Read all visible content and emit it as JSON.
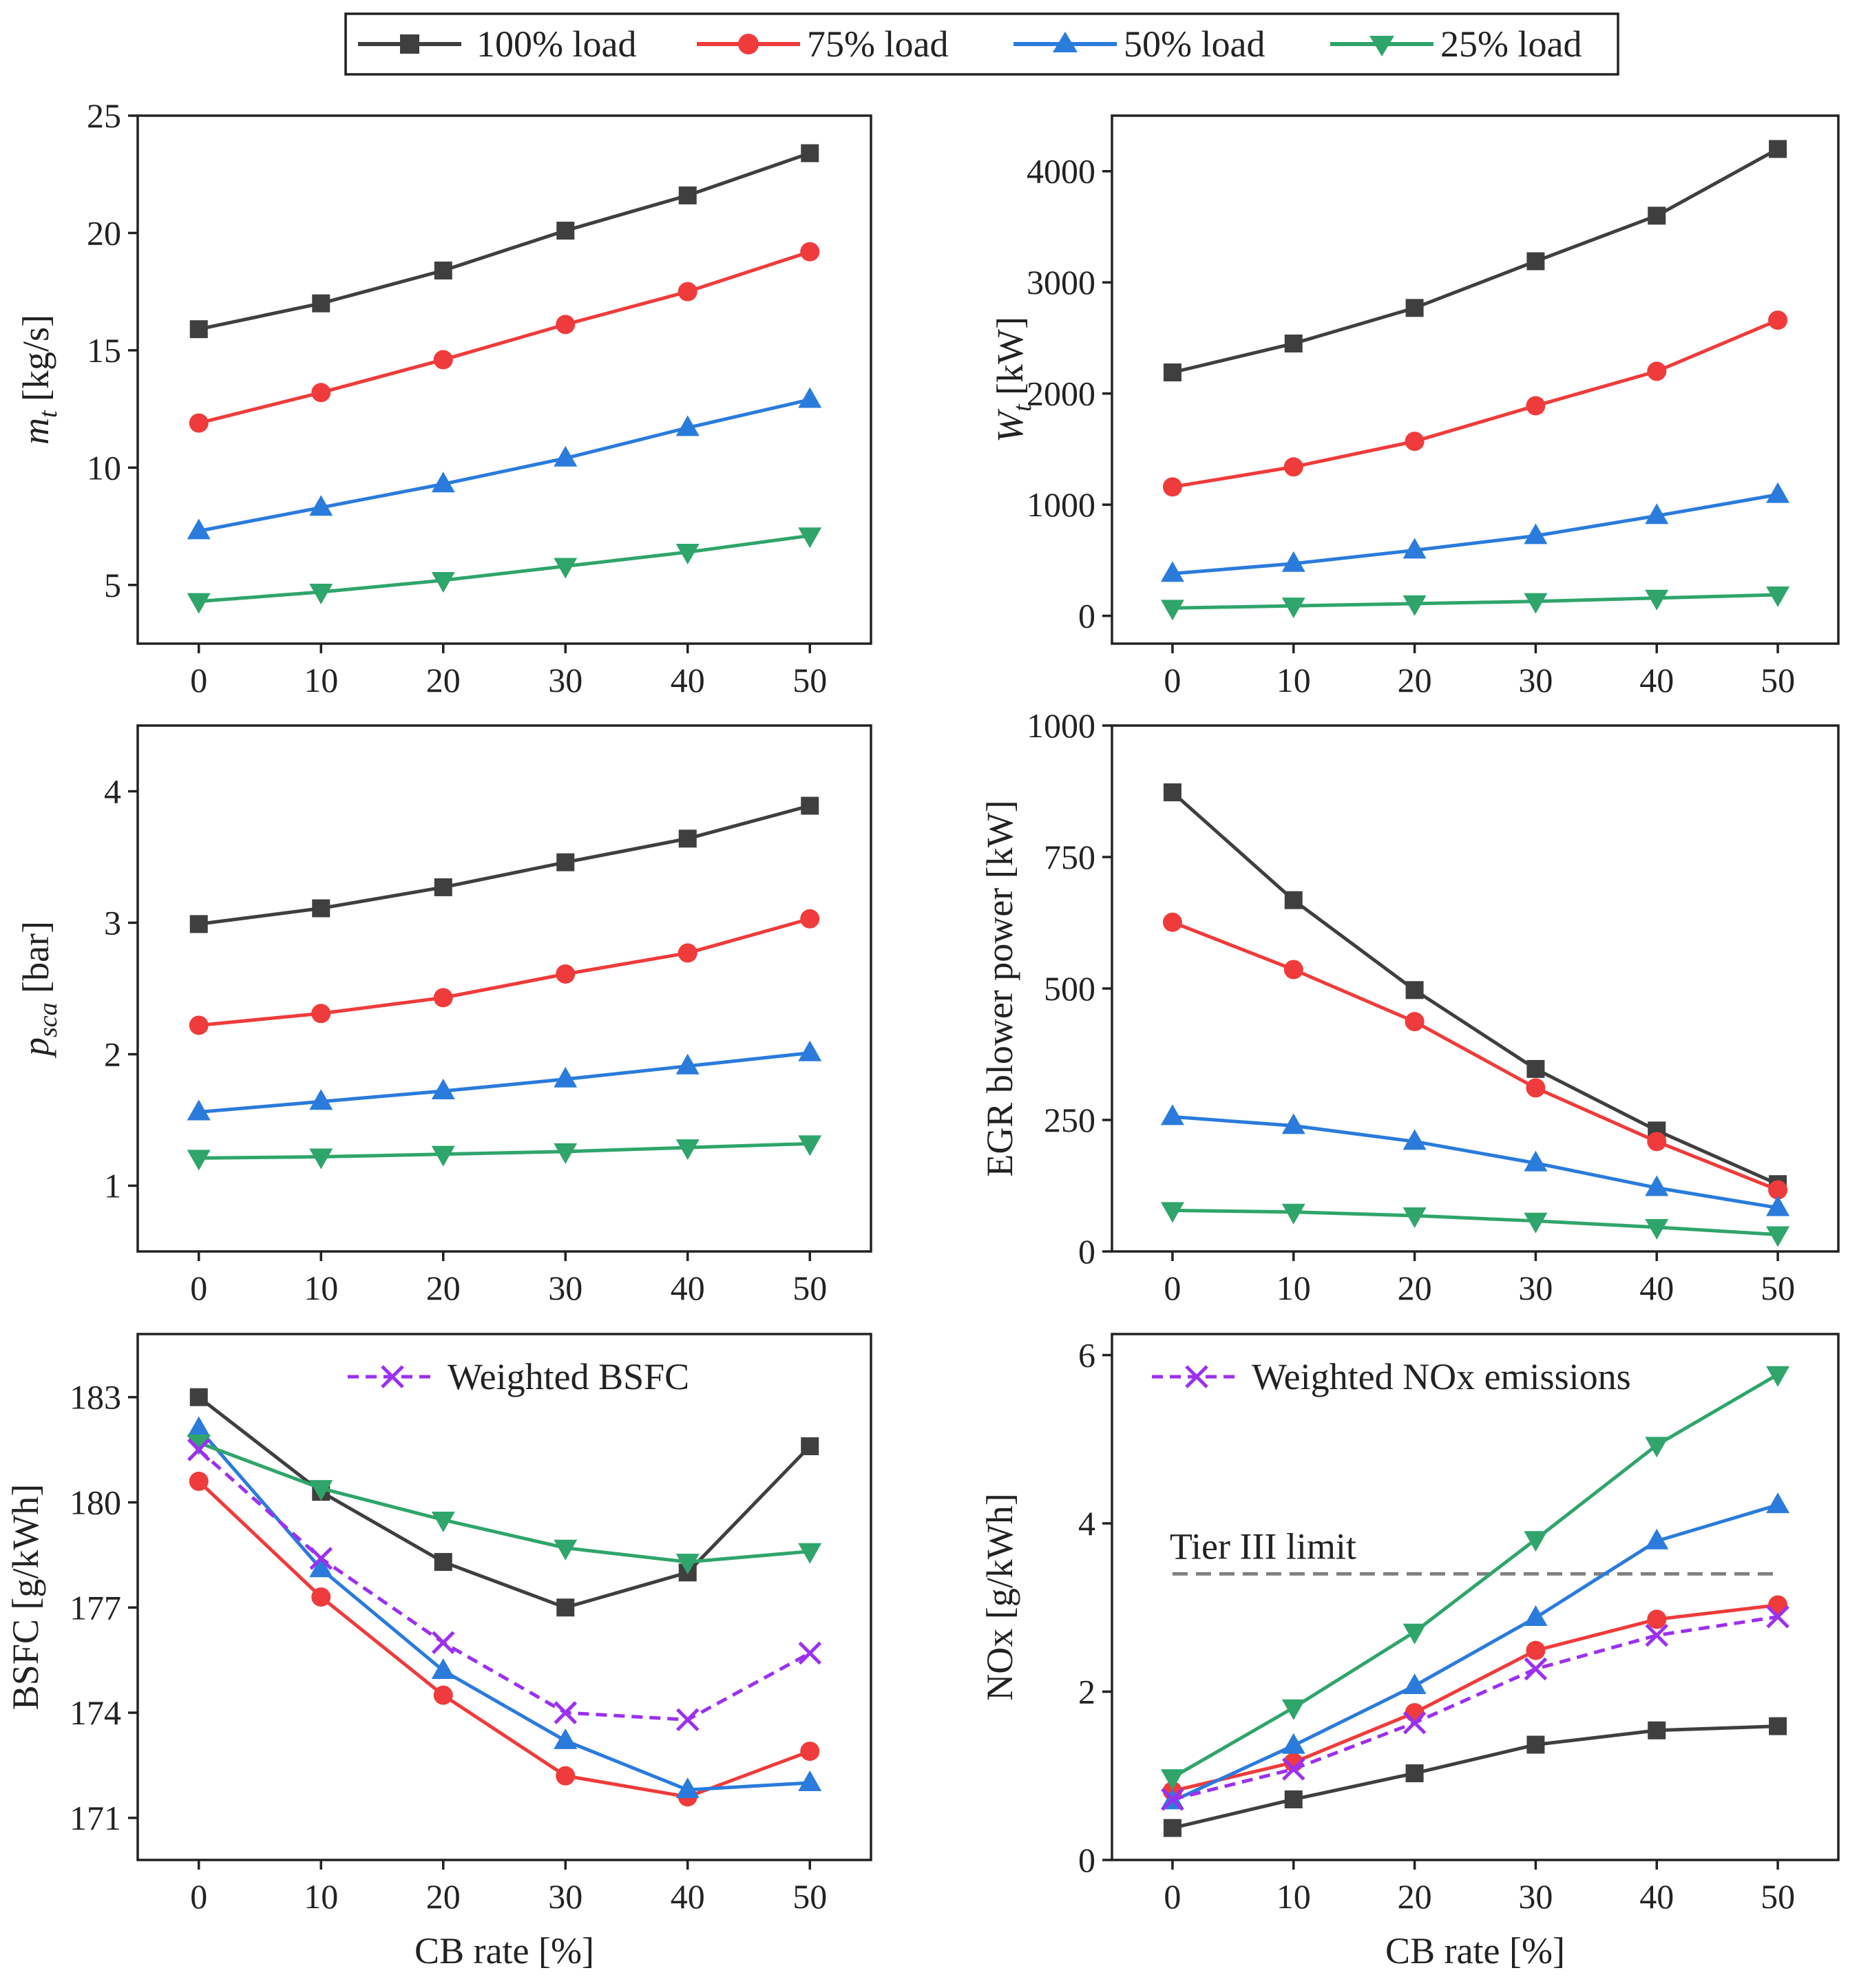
{
  "legend": {
    "items": [
      {
        "label": "100% load",
        "color": "#3f3f3f",
        "marker": "square"
      },
      {
        "label": "75% load",
        "color": "#ef3b3b",
        "marker": "circle"
      },
      {
        "label": "50% load",
        "color": "#2a7bdc",
        "marker": "triangle-up"
      },
      {
        "label": "25% load",
        "color": "#2fa56b",
        "marker": "triangle-down"
      }
    ]
  },
  "chart_data": [
    {
      "id": "mt",
      "type": "line",
      "x": [
        0,
        10,
        20,
        30,
        40,
        50
      ],
      "xlabel": "",
      "ylabel_main": "m",
      "ylabel_sub": "t",
      "ylabel_rest": " [kg/s]",
      "ylim": [
        2.5,
        25
      ],
      "yticks": [
        5,
        10,
        15,
        20,
        25
      ],
      "xticks": [
        0,
        10,
        20,
        30,
        40,
        50
      ],
      "series": [
        {
          "name": "100% load",
          "values": [
            15.9,
            17.0,
            18.4,
            20.1,
            21.6,
            23.4
          ]
        },
        {
          "name": "75% load",
          "values": [
            11.9,
            13.2,
            14.6,
            16.1,
            17.5,
            19.2
          ]
        },
        {
          "name": "50% load",
          "values": [
            7.3,
            8.3,
            9.3,
            10.4,
            11.7,
            12.9
          ]
        },
        {
          "name": "25% load",
          "values": [
            4.3,
            4.7,
            5.2,
            5.8,
            6.4,
            7.1
          ]
        }
      ]
    },
    {
      "id": "wt",
      "type": "line",
      "x": [
        0,
        10,
        20,
        30,
        40,
        50
      ],
      "xlabel": "",
      "ylabel_main": "W",
      "ylabel_sub": "t",
      "ylabel_rest": " [kW]",
      "ylim": [
        -250,
        4500
      ],
      "yticks": [
        0,
        1000,
        2000,
        3000,
        4000
      ],
      "xticks": [
        0,
        10,
        20,
        30,
        40,
        50
      ],
      "series": [
        {
          "name": "100% load",
          "values": [
            2190,
            2450,
            2770,
            3190,
            3600,
            4200
          ]
        },
        {
          "name": "75% load",
          "values": [
            1160,
            1340,
            1570,
            1890,
            2200,
            2660
          ]
        },
        {
          "name": "50% load",
          "values": [
            380,
            470,
            590,
            720,
            900,
            1090
          ]
        },
        {
          "name": "25% load",
          "values": [
            70,
            90,
            110,
            130,
            160,
            190
          ]
        }
      ]
    },
    {
      "id": "psca",
      "type": "line",
      "x": [
        0,
        10,
        20,
        30,
        40,
        50
      ],
      "xlabel": "",
      "ylabel_main": "p",
      "ylabel_sub": "sca",
      "ylabel_rest": " [bar]",
      "ylim": [
        0.5,
        4.5
      ],
      "yticks": [
        1,
        2,
        3,
        4
      ],
      "xticks": [
        0,
        10,
        20,
        30,
        40,
        50
      ],
      "series": [
        {
          "name": "100% load",
          "values": [
            2.99,
            3.11,
            3.27,
            3.46,
            3.64,
            3.89
          ]
        },
        {
          "name": "75% load",
          "values": [
            2.22,
            2.31,
            2.43,
            2.61,
            2.77,
            3.03
          ]
        },
        {
          "name": "50% load",
          "values": [
            1.56,
            1.64,
            1.72,
            1.81,
            1.91,
            2.01
          ]
        },
        {
          "name": "25% load",
          "values": [
            1.21,
            1.22,
            1.24,
            1.26,
            1.29,
            1.32
          ]
        }
      ]
    },
    {
      "id": "egr",
      "type": "line",
      "x": [
        0,
        10,
        20,
        30,
        40,
        50
      ],
      "xlabel": "",
      "ylabel_main": "EGR blower power [kW]",
      "ylabel_sub": "",
      "ylabel_rest": "",
      "ylim": [
        0,
        1000
      ],
      "yticks": [
        0,
        250,
        500,
        750,
        1000
      ],
      "xticks": [
        0,
        10,
        20,
        30,
        40,
        50
      ],
      "series": [
        {
          "name": "100% load",
          "values": [
            873,
            668,
            497,
            347,
            230,
            128
          ]
        },
        {
          "name": "75% load",
          "values": [
            626,
            536,
            437,
            311,
            209,
            117
          ]
        },
        {
          "name": "50% load",
          "values": [
            256,
            239,
            209,
            168,
            121,
            83
          ]
        },
        {
          "name": "25% load",
          "values": [
            78,
            75,
            68,
            58,
            46,
            32
          ]
        }
      ]
    },
    {
      "id": "bsfc",
      "type": "line",
      "x": [
        0,
        10,
        20,
        30,
        40,
        50
      ],
      "xlabel": "CB rate [%]",
      "ylabel_main": "BSFC [g/kWh]",
      "ylabel_sub": "",
      "ylabel_rest": "",
      "ylim": [
        169.8,
        184.8
      ],
      "yticks": [
        171,
        174,
        177,
        180,
        183
      ],
      "xticks": [
        0,
        10,
        20,
        30,
        40,
        50
      ],
      "annotation": "Weighted BSFC",
      "series": [
        {
          "name": "100% load",
          "values": [
            183.0,
            180.3,
            178.3,
            177.0,
            178.0,
            181.6
          ]
        },
        {
          "name": "75% load",
          "values": [
            180.6,
            177.3,
            174.5,
            172.2,
            171.6,
            172.9
          ]
        },
        {
          "name": "50% load",
          "values": [
            182.1,
            178.1,
            175.2,
            173.2,
            171.8,
            172.0
          ]
        },
        {
          "name": "25% load",
          "values": [
            181.7,
            180.4,
            179.5,
            178.7,
            178.3,
            178.6
          ]
        },
        {
          "name": "Weighted BSFC",
          "values": [
            181.5,
            178.4,
            176.0,
            174.0,
            173.8,
            175.7
          ]
        }
      ]
    },
    {
      "id": "nox",
      "type": "line",
      "x": [
        0,
        10,
        20,
        30,
        40,
        50
      ],
      "xlabel": "CB rate [%]",
      "ylabel_main": "NOx [g/kWh]",
      "ylabel_sub": "",
      "ylabel_rest": "",
      "ylim": [
        0,
        6.25
      ],
      "yticks": [
        0,
        2,
        4,
        6
      ],
      "xticks": [
        0,
        10,
        20,
        30,
        40,
        50
      ],
      "annotation": "Weighted NOx emissions",
      "reference_line": {
        "label": "Tier III limit",
        "value": 3.4
      },
      "series": [
        {
          "name": "100% load",
          "values": [
            0.38,
            0.72,
            1.03,
            1.37,
            1.54,
            1.59
          ]
        },
        {
          "name": "75% load",
          "values": [
            0.82,
            1.16,
            1.75,
            2.49,
            2.86,
            3.03
          ]
        },
        {
          "name": "50% load",
          "values": [
            0.7,
            1.36,
            2.07,
            2.88,
            3.79,
            4.22
          ]
        },
        {
          "name": "25% load",
          "values": [
            0.98,
            1.81,
            2.71,
            3.81,
            4.93,
            5.77
          ]
        },
        {
          "name": "Weighted NOx emissions",
          "values": [
            0.72,
            1.08,
            1.63,
            2.27,
            2.67,
            2.89
          ]
        }
      ]
    }
  ],
  "weighted_style": {
    "color": "#9b30f0",
    "marker": "x"
  },
  "reference_style": {
    "color": "#808080"
  }
}
